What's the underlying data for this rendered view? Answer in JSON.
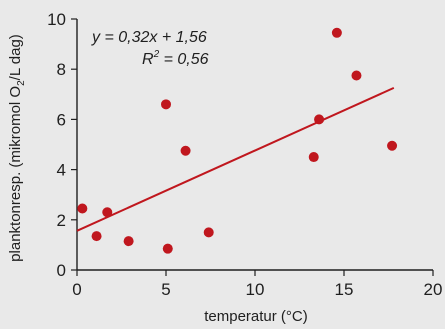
{
  "chart_data": {
    "type": "scatter",
    "xlabel": "temperatur (°C)",
    "ylabel": {
      "before_sub": "planktonresp. (mikromol O",
      "sub": "2",
      "after_sub": "/L dag)"
    },
    "xlim": [
      0,
      20
    ],
    "ylim": [
      0,
      10
    ],
    "xticks": [
      0,
      5,
      10,
      15,
      20
    ],
    "yticks": [
      0,
      2,
      4,
      6,
      8,
      10
    ],
    "grid": false,
    "legend": "none",
    "annotations": {
      "equation": "y = 0,32x + 1,56",
      "r2_prefix": "R",
      "r2_sup": "2",
      "r2_suffix": " = 0,56"
    },
    "points": [
      {
        "x": 0.3,
        "y": 2.45
      },
      {
        "x": 1.1,
        "y": 1.35
      },
      {
        "x": 1.7,
        "y": 2.3
      },
      {
        "x": 2.9,
        "y": 1.15
      },
      {
        "x": 5.0,
        "y": 6.6
      },
      {
        "x": 5.1,
        "y": 0.85
      },
      {
        "x": 6.1,
        "y": 4.75
      },
      {
        "x": 7.4,
        "y": 1.5
      },
      {
        "x": 13.3,
        "y": 4.5
      },
      {
        "x": 13.6,
        "y": 6.0
      },
      {
        "x": 14.6,
        "y": 9.45
      },
      {
        "x": 15.7,
        "y": 7.75
      },
      {
        "x": 17.7,
        "y": 4.95
      }
    ],
    "trendline": {
      "slope": 0.32,
      "intercept": 1.56,
      "x_start": 0,
      "x_end": 17.8
    },
    "colors": {
      "points": "#c0171e",
      "trendline": "#c0171e",
      "axis": "#1f1f1f",
      "background": "#e9e9e9"
    }
  }
}
